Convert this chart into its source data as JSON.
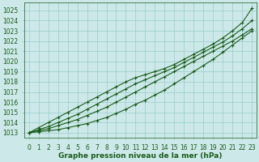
{
  "background_color": "#cce8e8",
  "grid_color": "#99cccc",
  "line_colors": [
    "#1a5c1a",
    "#1a5c1a",
    "#1a5c1a",
    "#1a5c1a"
  ],
  "xlabel": "Graphe pression niveau de la mer (hPa)",
  "xlim_min": -0.5,
  "xlim_max": 23.5,
  "ylim": [
    1012.5,
    1025.8
  ],
  "yticks": [
    1013,
    1014,
    1015,
    1016,
    1017,
    1018,
    1019,
    1020,
    1021,
    1022,
    1023,
    1024,
    1025
  ],
  "xticks": [
    0,
    1,
    2,
    3,
    4,
    5,
    6,
    7,
    8,
    9,
    10,
    11,
    12,
    13,
    14,
    15,
    16,
    17,
    18,
    19,
    20,
    21,
    22,
    23
  ],
  "series": [
    [
      1013.0,
      1013.1,
      1013.2,
      1013.3,
      1013.5,
      1013.7,
      1013.9,
      1014.2,
      1014.5,
      1014.9,
      1015.3,
      1015.8,
      1016.2,
      1016.7,
      1017.2,
      1017.8,
      1018.4,
      1019.0,
      1019.6,
      1020.2,
      1020.9,
      1021.6,
      1022.3,
      1023.0
    ],
    [
      1013.0,
      1013.2,
      1013.4,
      1013.7,
      1014.0,
      1014.3,
      1014.7,
      1015.1,
      1015.5,
      1016.0,
      1016.5,
      1017.0,
      1017.5,
      1018.0,
      1018.5,
      1019.0,
      1019.5,
      1020.0,
      1020.5,
      1021.0,
      1021.5,
      1022.0,
      1022.6,
      1023.2
    ],
    [
      1013.0,
      1013.3,
      1013.6,
      1014.0,
      1014.4,
      1014.8,
      1015.3,
      1015.8,
      1016.3,
      1016.8,
      1017.3,
      1017.8,
      1018.2,
      1018.6,
      1019.0,
      1019.4,
      1019.9,
      1020.4,
      1020.9,
      1021.4,
      1021.9,
      1022.5,
      1023.2,
      1024.0
    ],
    [
      1013.0,
      1013.5,
      1014.0,
      1014.5,
      1015.0,
      1015.5,
      1016.0,
      1016.5,
      1017.0,
      1017.5,
      1018.0,
      1018.4,
      1018.7,
      1019.0,
      1019.3,
      1019.7,
      1020.2,
      1020.7,
      1021.2,
      1021.7,
      1022.3,
      1023.0,
      1023.8,
      1025.2
    ]
  ],
  "marker": "+",
  "markersize": 3.5,
  "linewidth": 0.8,
  "tick_fontsize": 5.5,
  "xlabel_fontsize": 6.5,
  "xlabel_fontweight": "bold"
}
